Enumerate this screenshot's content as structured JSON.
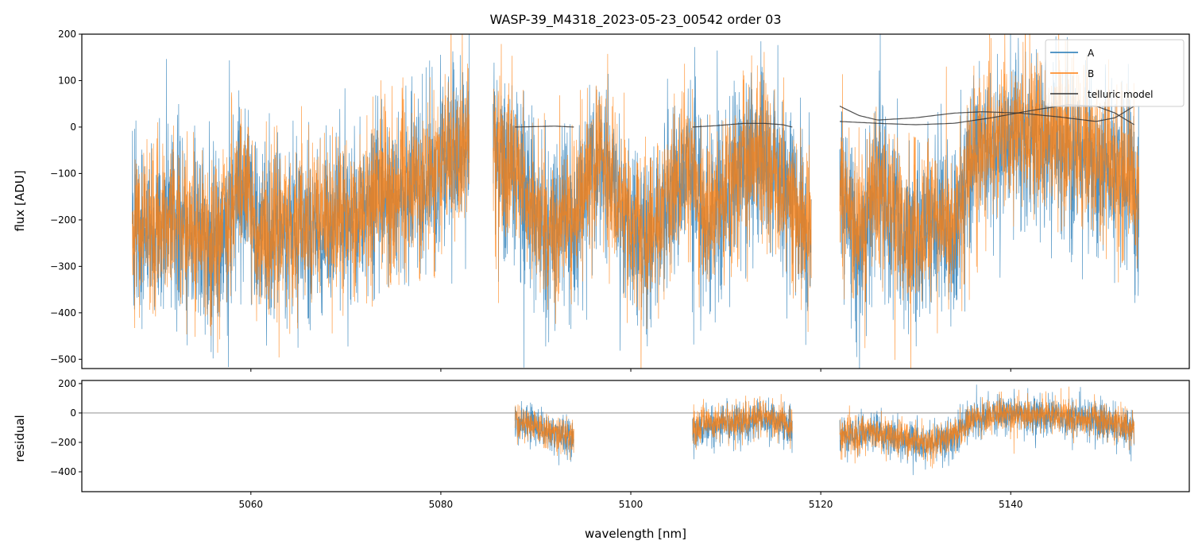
{
  "chart_data": [
    {
      "type": "line",
      "title": "WASP-39_M4318_2023-05-23_00542  order 03",
      "xlabel": "",
      "ylabel": "flux [ADU]",
      "xlim": [
        5042.2,
        5158.8
      ],
      "ylim": [
        -520,
        200
      ],
      "xticks": [
        5060,
        5080,
        5100,
        5120,
        5140
      ],
      "yticks": [
        200,
        100,
        0,
        -100,
        -200,
        -300,
        -400,
        -500
      ],
      "ytick_labels": [
        "200",
        "100",
        "0",
        "−100",
        "−200",
        "−300",
        "−400",
        "−500"
      ],
      "legend": {
        "placement": "top-right",
        "entries": [
          "A",
          "B",
          "telluric model"
        ]
      },
      "series": [
        {
          "name": "A",
          "color": "#1f77b4",
          "noise_sigma": 115,
          "seed": 7,
          "segments": [
            [
              [
                5047.5,
                -220
              ],
              [
                5052,
                -200
              ],
              [
                5056,
                -260
              ],
              [
                5059.5,
                -120
              ],
              [
                5060.5,
                -240
              ],
              [
                5066,
                -220
              ],
              [
                5072,
                -170
              ],
              [
                5078,
                -120
              ],
              [
                5083,
                -20
              ]
            ],
            [
              [
                5085.5,
                -30
              ],
              [
                5088,
                -120
              ],
              [
                5091,
                -230
              ],
              [
                5094,
                -200
              ],
              [
                5097,
                -50
              ],
              [
                5099,
                -200
              ],
              [
                5102,
                -250
              ],
              [
                5104,
                -150
              ],
              [
                5106,
                -60
              ],
              [
                5108,
                -220
              ],
              [
                5110,
                -150
              ],
              [
                5112,
                -80
              ],
              [
                5114,
                -50
              ],
              [
                5116,
                -150
              ],
              [
                5119,
                -250
              ]
            ],
            [
              [
                5122,
                -150
              ],
              [
                5124,
                -250
              ],
              [
                5126,
                -150
              ],
              [
                5128,
                -200
              ],
              [
                5130,
                -250
              ],
              [
                5132,
                -180
              ],
              [
                5134,
                -250
              ],
              [
                5136,
                -50
              ],
              [
                5140,
                -20
              ],
              [
                5145,
                -40
              ],
              [
                5150,
                -80
              ],
              [
                5153.5,
                -150
              ]
            ]
          ]
        },
        {
          "name": "B",
          "color": "#ff7f0e",
          "noise_sigma": 105,
          "seed": 13,
          "segments": [
            [
              [
                5047.5,
                -210
              ],
              [
                5052,
                -190
              ],
              [
                5056,
                -250
              ],
              [
                5059.5,
                -110
              ],
              [
                5060.5,
                -230
              ],
              [
                5066,
                -210
              ],
              [
                5072,
                -160
              ],
              [
                5078,
                -110
              ],
              [
                5083,
                -20
              ]
            ],
            [
              [
                5085.5,
                -30
              ],
              [
                5088,
                -110
              ],
              [
                5091,
                -220
              ],
              [
                5094,
                -190
              ],
              [
                5097,
                -50
              ],
              [
                5099,
                -190
              ],
              [
                5102,
                -240
              ],
              [
                5104,
                -140
              ],
              [
                5106,
                -60
              ],
              [
                5108,
                -210
              ],
              [
                5110,
                -140
              ],
              [
                5112,
                -70
              ],
              [
                5114,
                -50
              ],
              [
                5116,
                -140
              ],
              [
                5119,
                -240
              ]
            ],
            [
              [
                5122,
                -140
              ],
              [
                5124,
                -240
              ],
              [
                5126,
                -140
              ],
              [
                5128,
                -190
              ],
              [
                5130,
                -240
              ],
              [
                5132,
                -170
              ],
              [
                5134,
                -240
              ],
              [
                5136,
                -40
              ],
              [
                5140,
                -10
              ],
              [
                5145,
                -30
              ],
              [
                5150,
                -70
              ],
              [
                5153.5,
                -140
              ]
            ]
          ]
        },
        {
          "name": "telluric model",
          "color": "#333333",
          "segments": [
            [
              [
                5087.8,
                0
              ],
              [
                5090,
                1
              ],
              [
                5092,
                2
              ],
              [
                5094,
                0
              ]
            ],
            [
              [
                5106.5,
                0
              ],
              [
                5109,
                3
              ],
              [
                5112,
                8
              ],
              [
                5114,
                8
              ],
              [
                5116,
                5
              ],
              [
                5117,
                0
              ]
            ],
            [
              [
                5122,
                45
              ],
              [
                5124,
                25
              ],
              [
                5126,
                15
              ],
              [
                5130,
                20
              ],
              [
                5134,
                30
              ],
              [
                5137,
                33
              ],
              [
                5141,
                30
              ],
              [
                5145,
                22
              ],
              [
                5149,
                12
              ],
              [
                5151,
                20
              ],
              [
                5153,
                45
              ]
            ],
            [
              [
                5122,
                12
              ],
              [
                5126,
                8
              ],
              [
                5130,
                5
              ],
              [
                5134,
                8
              ],
              [
                5138,
                20
              ],
              [
                5142,
                35
              ],
              [
                5146,
                48
              ],
              [
                5149,
                45
              ],
              [
                5151,
                30
              ],
              [
                5153,
                5
              ]
            ]
          ]
        }
      ]
    },
    {
      "type": "line",
      "xlabel": "wavelength [nm]",
      "ylabel": "residual",
      "xlim": [
        5042.2,
        5158.8
      ],
      "ylim": [
        -535,
        221
      ],
      "xticks": [
        5060,
        5080,
        5100,
        5120,
        5140
      ],
      "xtick_labels": [
        "5060",
        "5080",
        "5100",
        "5120",
        "5140"
      ],
      "yticks": [
        200,
        0,
        -200,
        -400
      ],
      "ytick_labels": [
        "200",
        "0",
        "−200",
        "−400"
      ],
      "reference_line": 0,
      "series": [
        {
          "name": "A",
          "color": "#1f77b4",
          "noise_sigma": 85,
          "seed": 21,
          "segments": [
            [
              [
                5087.8,
                -60
              ],
              [
                5090,
                -100
              ],
              [
                5092,
                -150
              ],
              [
                5094,
                -170
              ]
            ],
            [
              [
                5106.5,
                -130
              ],
              [
                5108,
                -80
              ],
              [
                5111,
                -70
              ],
              [
                5114,
                -40
              ],
              [
                5117,
                -90
              ]
            ],
            [
              [
                5122,
                -170
              ],
              [
                5125,
                -130
              ],
              [
                5128,
                -180
              ],
              [
                5131,
                -220
              ],
              [
                5134,
                -160
              ],
              [
                5136,
                -40
              ],
              [
                5140,
                0
              ],
              [
                5145,
                -30
              ],
              [
                5150,
                -60
              ],
              [
                5153,
                -120
              ]
            ]
          ]
        },
        {
          "name": "B",
          "color": "#ff7f0e",
          "noise_sigma": 75,
          "seed": 33,
          "segments": [
            [
              [
                5087.8,
                -50
              ],
              [
                5090,
                -90
              ],
              [
                5092,
                -140
              ],
              [
                5094,
                -160
              ]
            ],
            [
              [
                5106.5,
                -120
              ],
              [
                5108,
                -70
              ],
              [
                5111,
                -60
              ],
              [
                5114,
                -30
              ],
              [
                5117,
                -80
              ]
            ],
            [
              [
                5122,
                -160
              ],
              [
                5125,
                -120
              ],
              [
                5128,
                -170
              ],
              [
                5131,
                -210
              ],
              [
                5134,
                -150
              ],
              [
                5136,
                -30
              ],
              [
                5140,
                0
              ],
              [
                5145,
                -20
              ],
              [
                5150,
                -50
              ],
              [
                5153,
                -110
              ]
            ]
          ]
        }
      ]
    }
  ]
}
